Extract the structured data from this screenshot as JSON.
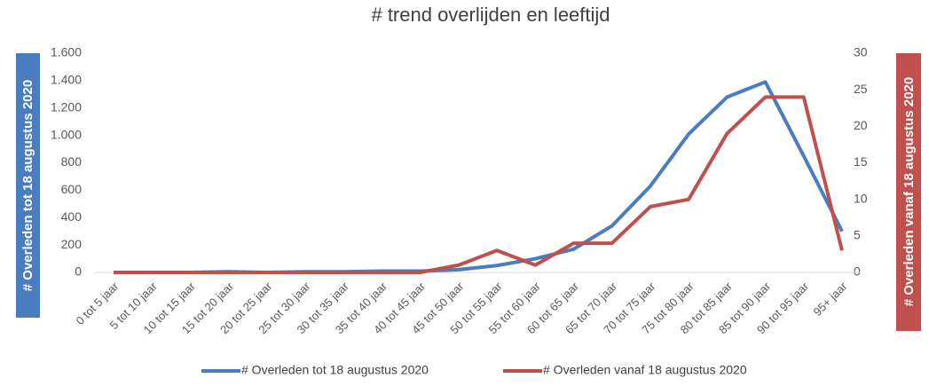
{
  "chart_data": {
    "type": "line",
    "title": "# trend overlijden en leeftijd",
    "categories": [
      "0 tot 5 jaar",
      "5 tot 10 jaar",
      "10 tot 15 jaar",
      "15 tot 20 jaar",
      "20 tot 25 jaar",
      "25 tot 30 jaar",
      "30 tot 35 jaar",
      "35 tot 40 jaar",
      "40 tot 45 jaar",
      "45 tot 50 jaar",
      "50 tot 55 jaar",
      "55 tot 60 jaar",
      "60 tot 65 jaar",
      "65 tot 70 jaar",
      "70 tot 75 jaar",
      "75 tot 80 jaar",
      "80 tot 85 jaar",
      "85 tot 90 jaar",
      "90 tot 95 jaar",
      "95+ jaar"
    ],
    "series": [
      {
        "name": "# Overleden  tot 18 augustus 2020",
        "color": "#4a7dc0",
        "values": [
          0,
          0,
          0,
          5,
          0,
          5,
          5,
          10,
          10,
          20,
          50,
          100,
          170,
          340,
          630,
          1010,
          1280,
          1390,
          850,
          300
        ]
      },
      {
        "name": "# Overleden vanaf 18 augustus 2020",
        "color": "#c0504d",
        "axis": "y2",
        "values": [
          0,
          0,
          0,
          0,
          0,
          0,
          0,
          0,
          0,
          1,
          3,
          1,
          4,
          4,
          9,
          10,
          19,
          24,
          24,
          3
        ]
      }
    ],
    "ylabel": "# Overleden  tot 18 augustus 2020",
    "y2label": "# Overleden vanaf 18 augustus 2020",
    "ylim": [
      0,
      1600
    ],
    "yticks": [
      0,
      200,
      400,
      600,
      800,
      {
        "value": 1000,
        "label": "1.000"
      },
      {
        "value": 1200,
        "label": "1.200"
      },
      {
        "value": 1400,
        "label": "1.400"
      },
      {
        "value": 1600,
        "label": "1.600"
      }
    ],
    "y2lim": [
      0,
      30
    ],
    "y2ticks": [
      0,
      5,
      10,
      15,
      20,
      25,
      30
    ]
  }
}
